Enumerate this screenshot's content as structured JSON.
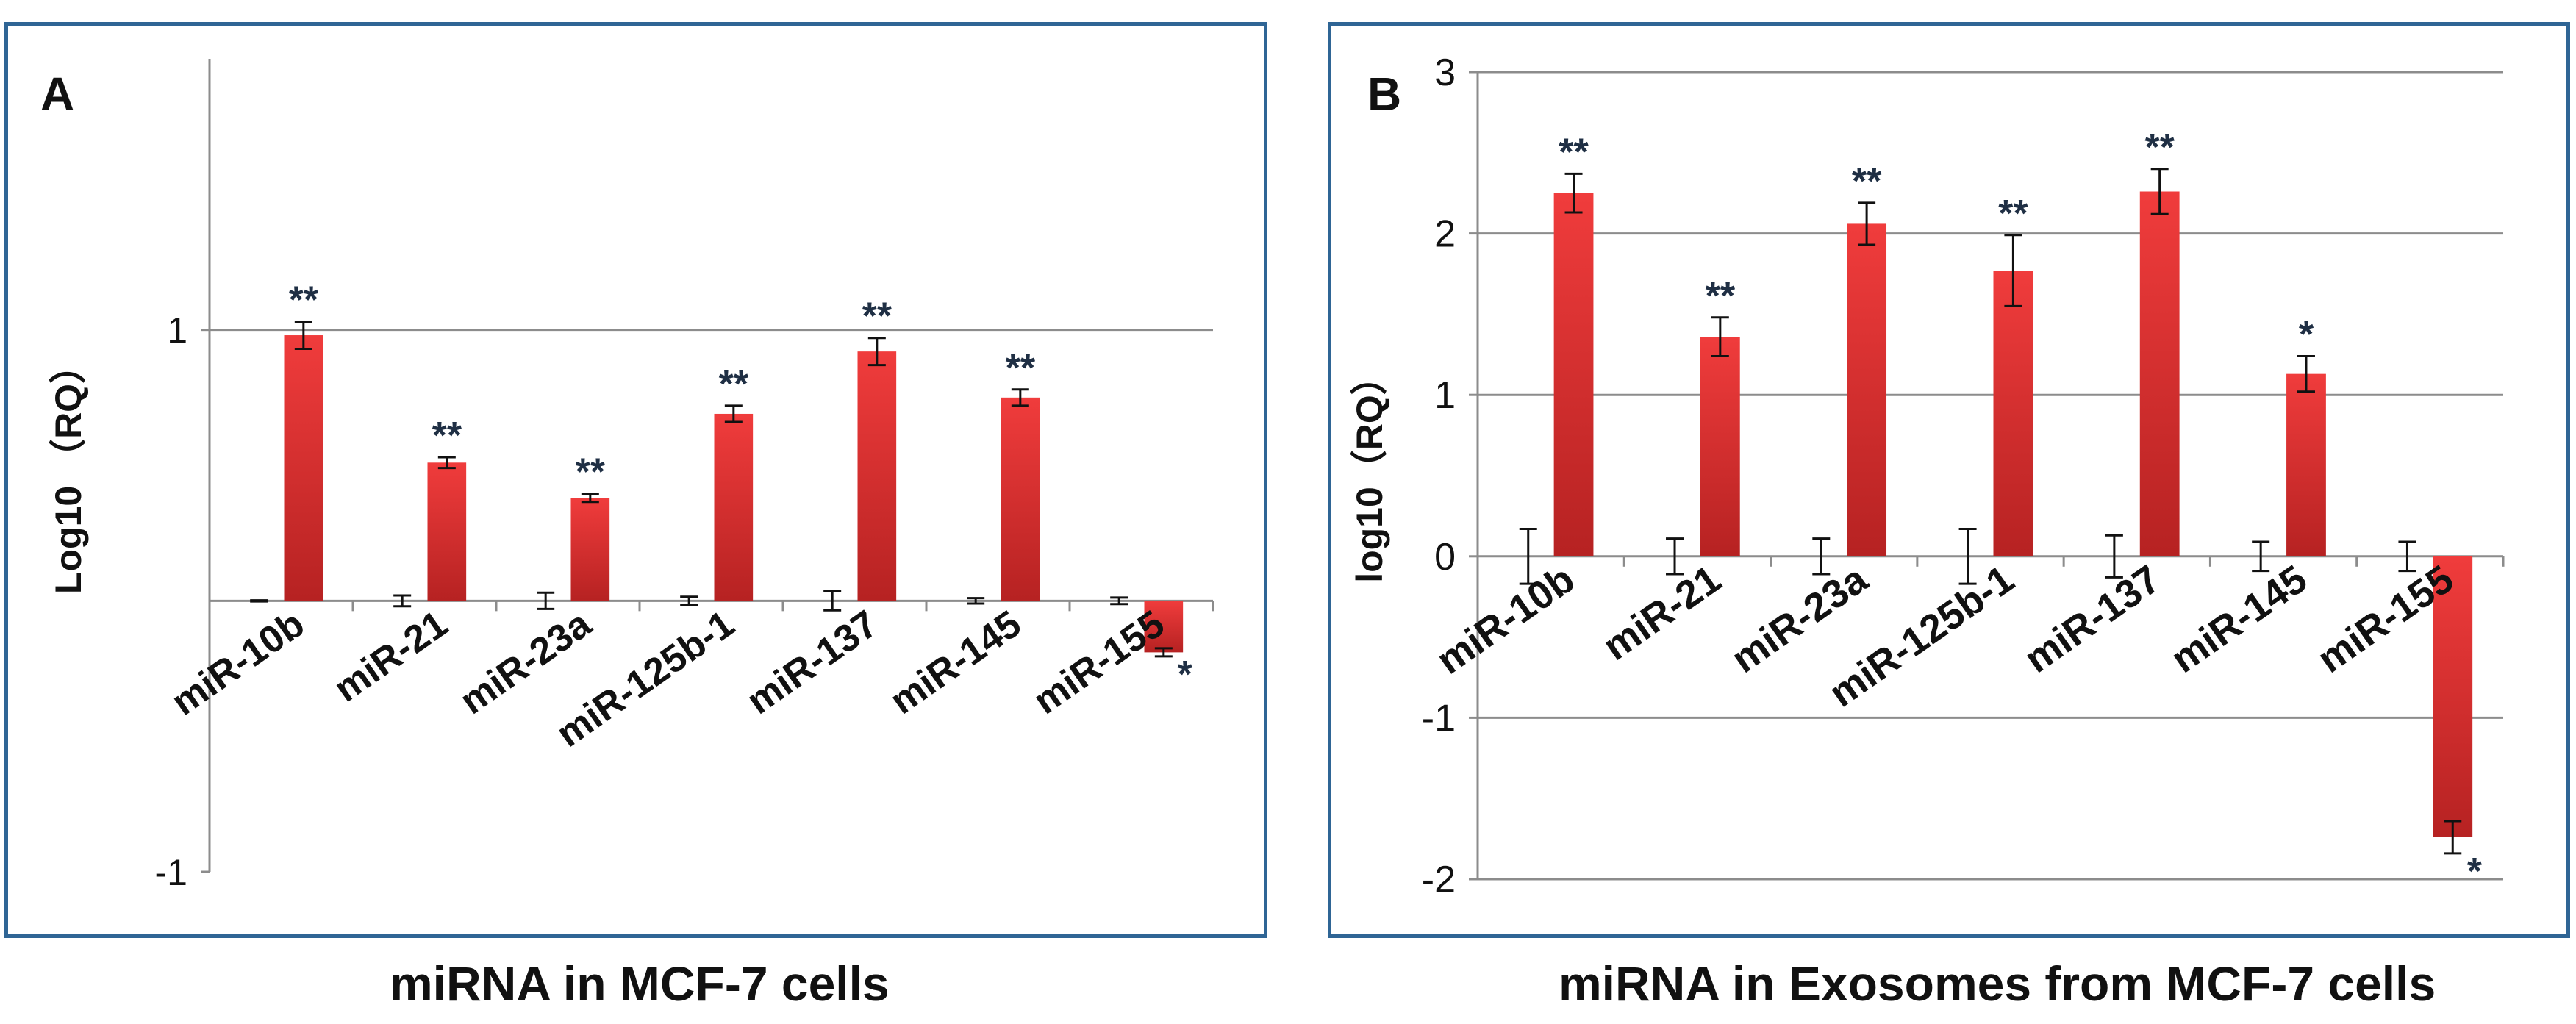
{
  "colors": {
    "bar_top": "#f03c3c",
    "bar_bottom": "#b62222",
    "frame": "#2f6595",
    "axis": "#8c8c8c",
    "grid": "#8c8c8c",
    "text": "#111111"
  },
  "captions": {
    "a": "miRNA in MCF-7 cells",
    "b": "miRNA in Exosomes from MCF-7 cells"
  },
  "chart_data": [
    {
      "panel": "A",
      "type": "bar",
      "title": "",
      "xlabel": "",
      "ylabel": "Log10 （RQ）",
      "ylim": [
        -1,
        2
      ],
      "yticks": [
        -1,
        1
      ],
      "grid": true,
      "categories": [
        "miR-10b",
        "miR-21",
        "miR-23a",
        "miR-125b-1",
        "miR-137",
        "miR-145",
        "miR-155"
      ],
      "series": [
        {
          "values": [
            0,
            0,
            0,
            0,
            0,
            0,
            0
          ],
          "errors": [
            0.002,
            0.02,
            0.03,
            0.015,
            0.035,
            0.01,
            0.012
          ],
          "significance": [
            "",
            "",
            "",
            "",
            "",
            "",
            ""
          ]
        },
        {
          "values": [
            0.98,
            0.51,
            0.38,
            0.69,
            0.92,
            0.75,
            -0.19
          ],
          "errors": [
            0.05,
            0.02,
            0.015,
            0.03,
            0.05,
            0.03,
            0.015
          ],
          "significance": [
            "**",
            "**",
            "**",
            "**",
            "**",
            "**",
            "*"
          ]
        }
      ]
    },
    {
      "panel": "B",
      "type": "bar",
      "title": "",
      "xlabel": "",
      "ylabel": "log10（RQ）",
      "ylim": [
        -2,
        3
      ],
      "yticks": [
        -2,
        -1,
        0,
        1,
        2,
        3
      ],
      "grid": true,
      "categories": [
        "miR-10b",
        "miR-21",
        "miR-23a",
        "miR-125b-1",
        "miR-137",
        "miR-145",
        "miR-155"
      ],
      "series": [
        {
          "values": [
            0,
            0,
            0,
            0,
            0,
            0,
            0
          ],
          "errors": [
            0.17,
            0.11,
            0.11,
            0.17,
            0.13,
            0.09,
            0.09
          ],
          "significance": [
            "",
            "",
            "",
            "",
            "",
            "",
            ""
          ]
        },
        {
          "values": [
            2.25,
            1.36,
            2.06,
            1.77,
            2.26,
            1.13,
            -1.74
          ],
          "errors": [
            0.12,
            0.12,
            0.13,
            0.22,
            0.14,
            0.11,
            0.1
          ],
          "significance": [
            "**",
            "**",
            "**",
            "**",
            "**",
            "*",
            "*"
          ]
        }
      ]
    }
  ]
}
